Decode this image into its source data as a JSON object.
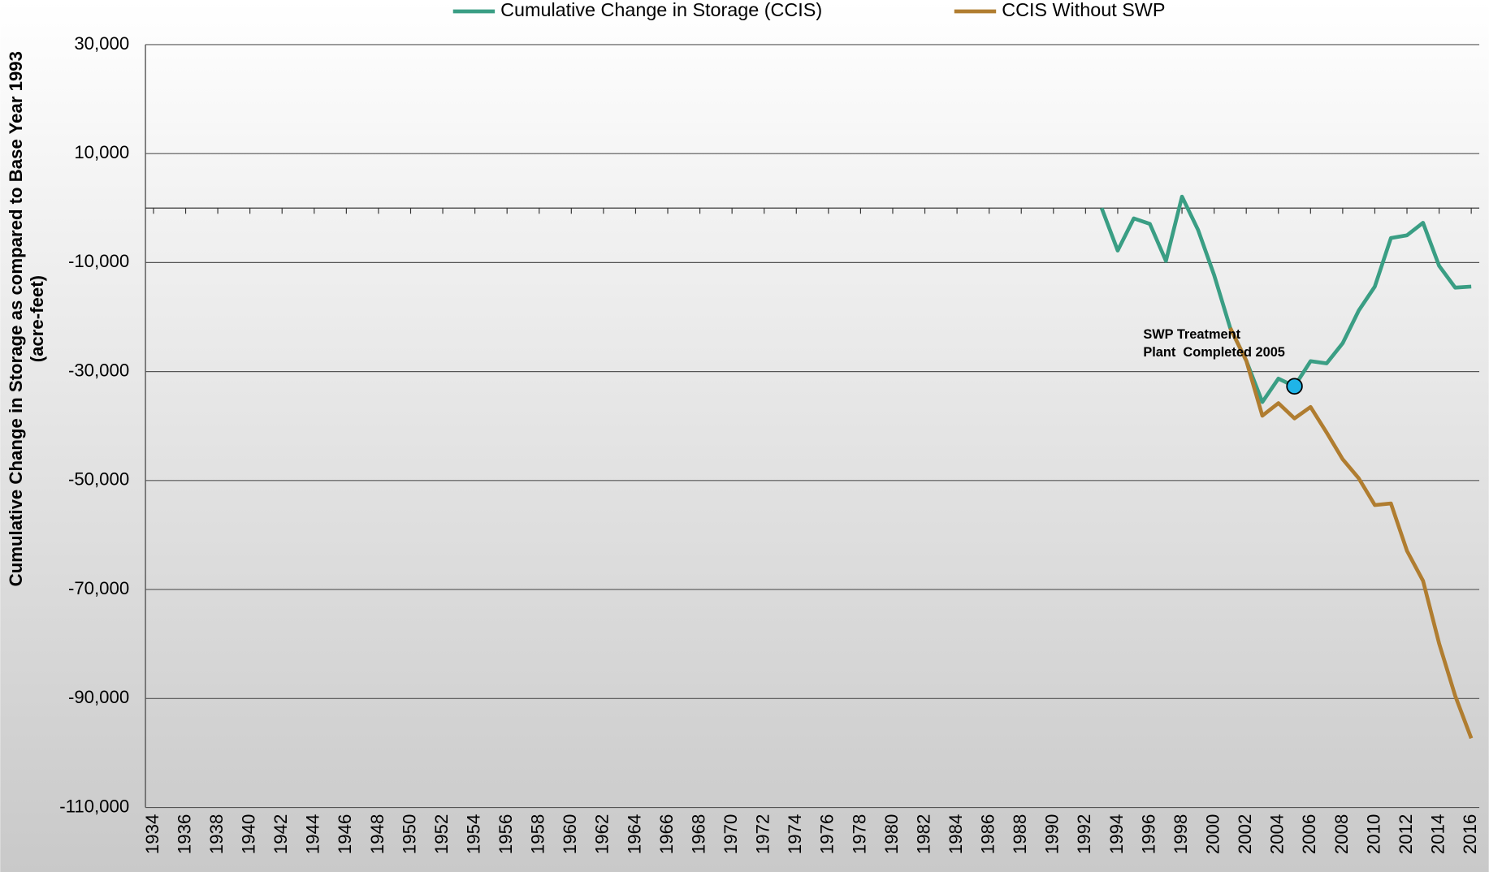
{
  "chart_data": {
    "type": "line",
    "ylabel": [
      "Cumulative Change in Storage as compared to Base Year 1993",
      "(acre-feet)"
    ],
    "x": [
      1993,
      1994,
      1995,
      1996,
      1997,
      1998,
      1999,
      2000,
      2001,
      2002,
      2003,
      2004,
      2005,
      2006,
      2007,
      2008,
      2009,
      2010,
      2011,
      2012,
      2013,
      2014,
      2015,
      2016
    ],
    "series": [
      {
        "name": "Cumulative Change in Storage (CCIS)",
        "color": "#3a9e84",
        "values": [
          0,
          -7800,
          -1900,
          -2900,
          -9700,
          2100,
          -4000,
          -12300,
          -22000,
          -28000,
          -35600,
          -31300,
          -32700,
          -28100,
          -28500,
          -24800,
          -18800,
          -14400,
          -5500,
          -5000,
          -2700,
          -10600,
          -14600,
          -14400
        ]
      },
      {
        "name": "CCIS Without SWP",
        "color": "#b07d30",
        "values": [
          null,
          null,
          null,
          null,
          null,
          null,
          null,
          null,
          -22000,
          -28000,
          -38100,
          -35800,
          -38600,
          -36500,
          -41200,
          -46100,
          -49600,
          -54500,
          -54200,
          -62900,
          -68400,
          -79900,
          -89500,
          -97300
        ]
      }
    ],
    "annotation": {
      "text": [
        "SWP Treatment",
        "Plant  Completed 2005"
      ],
      "marker_color": "#1fb4e8"
    },
    "xlim": [
      1933.5,
      2016.5
    ],
    "xticks": [
      1934,
      1936,
      1938,
      1940,
      1942,
      1944,
      1946,
      1948,
      1950,
      1952,
      1954,
      1956,
      1958,
      1960,
      1962,
      1964,
      1966,
      1968,
      1970,
      1972,
      1974,
      1976,
      1978,
      1980,
      1982,
      1984,
      1986,
      1988,
      1990,
      1992,
      1994,
      1996,
      1998,
      2000,
      2002,
      2004,
      2006,
      2008,
      2010,
      2012,
      2014,
      2016
    ],
    "ylim": [
      -110000,
      30000
    ],
    "yticks": [
      {
        "value": 30000,
        "label": "30,000"
      },
      {
        "value": 10000,
        "label": "10,000"
      },
      {
        "value": -10000,
        "label": "-10,000"
      },
      {
        "value": -30000,
        "label": "-30,000"
      },
      {
        "value": -50000,
        "label": "-50,000"
      },
      {
        "value": -70000,
        "label": "-70,000"
      },
      {
        "value": -90000,
        "label": "-90,000"
      },
      {
        "value": -110000,
        "label": "-110,000"
      }
    ],
    "grid": true,
    "legend": "top"
  }
}
